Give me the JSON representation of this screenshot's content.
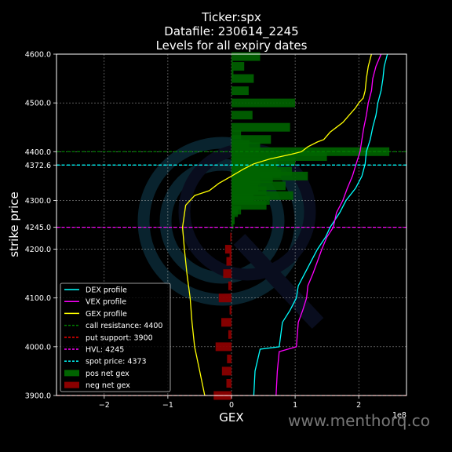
{
  "chart_data": {
    "type": "bar",
    "orientation": "horizontal",
    "title": [
      "Ticker:spx",
      "Datafile: 230614_2245",
      "Levels for all expiry dates"
    ],
    "xlabel": "GEX",
    "ylabel": "strike price",
    "x_scale_note": "1e8",
    "xlim": [
      -2.75,
      2.75
    ],
    "ylim": [
      3900,
      4600
    ],
    "xticks": [
      -2,
      -1,
      0,
      1,
      2
    ],
    "xtick_labels": [
      "−2",
      "−1",
      "0",
      "1",
      "2"
    ],
    "yticks": [
      3900,
      4000,
      4100,
      4200,
      4245,
      4300,
      4372.6,
      4400,
      4500,
      4600
    ],
    "ytick_labels": [
      "3900.0",
      "4000.0",
      "4100.0",
      "4200.0",
      "4245.0",
      "4300.0",
      "4372.6",
      "4400.0",
      "4500.0",
      "4600.0"
    ],
    "grid": true,
    "legend_position": "lower-left",
    "legend": [
      {
        "label": "DEX profile",
        "style": "line",
        "color": "#00ffff"
      },
      {
        "label": "VEX profile",
        "style": "line",
        "color": "#ff00ff"
      },
      {
        "label": "GEX profile",
        "style": "line",
        "color": "#ffff00"
      },
      {
        "label": "call resistance: 4400",
        "style": "dashed",
        "color": "#008000"
      },
      {
        "label": "put support: 3900",
        "style": "dashed",
        "color": "#ff0000"
      },
      {
        "label": "HVL: 4245",
        "style": "dashed",
        "color": "#ff00ff"
      },
      {
        "label": "spot price: 4373",
        "style": "dashed",
        "color": "#00ffff"
      },
      {
        "label": "pos net gex",
        "style": "patch",
        "color": "#006400"
      },
      {
        "label": "neg net gex",
        "style": "patch",
        "color": "#8b0000"
      }
    ],
    "levels": [
      {
        "value": 4400,
        "color": "#008000"
      },
      {
        "value": 3900,
        "color": "#ff0000"
      },
      {
        "value": 4245,
        "color": "#ff00ff"
      },
      {
        "value": 4372.6,
        "color": "#00ffff"
      }
    ],
    "pos_bars": [
      [
        4595,
        0.45
      ],
      [
        4580,
        0.02
      ],
      [
        4575,
        0.2
      ],
      [
        4560,
        0.03
      ],
      [
        4550,
        0.35
      ],
      [
        4525,
        0.27
      ],
      [
        4500,
        1.0
      ],
      [
        4475,
        0.33
      ],
      [
        4450,
        0.92
      ],
      [
        4435,
        0.15
      ],
      [
        4425,
        0.62
      ],
      [
        4415,
        0.28
      ],
      [
        4410,
        0.45
      ],
      [
        4400,
        2.48
      ],
      [
        4390,
        1.5
      ],
      [
        4385,
        0.72
      ],
      [
        4380,
        1.0
      ],
      [
        4375,
        0.55
      ],
      [
        4370,
        0.72
      ],
      [
        4365,
        0.45
      ],
      [
        4360,
        0.95
      ],
      [
        4355,
        0.78
      ],
      [
        4350,
        1.2
      ],
      [
        4345,
        0.65
      ],
      [
        4340,
        0.45
      ],
      [
        4335,
        0.3
      ],
      [
        4330,
        0.85
      ],
      [
        4325,
        0.42
      ],
      [
        4320,
        0.55
      ],
      [
        4310,
        0.97
      ],
      [
        4305,
        0.35
      ],
      [
        4300,
        0.6
      ],
      [
        4290,
        0.55
      ],
      [
        4280,
        0.15
      ],
      [
        4275,
        0.1
      ],
      [
        4260,
        0.05
      ],
      [
        4250,
        0.03
      ]
    ],
    "neg_bars": [
      [
        4225,
        -0.02
      ],
      [
        4200,
        -0.1
      ],
      [
        4190,
        -0.03
      ],
      [
        4175,
        -0.08
      ],
      [
        4150,
        -0.13
      ],
      [
        4125,
        -0.05
      ],
      [
        4100,
        -0.2
      ],
      [
        4075,
        -0.03
      ],
      [
        4050,
        -0.16
      ],
      [
        4025,
        -0.05
      ],
      [
        4000,
        -0.25
      ],
      [
        3975,
        -0.07
      ],
      [
        3950,
        -0.15
      ],
      [
        3925,
        -0.08
      ],
      [
        3900,
        -0.28
      ]
    ],
    "series": [
      {
        "name": "DEX profile",
        "color": "#00ffff",
        "points": [
          [
            0.35,
            3900
          ],
          [
            0.37,
            3950
          ],
          [
            0.45,
            3995
          ],
          [
            0.75,
            4000
          ],
          [
            0.8,
            4050
          ],
          [
            0.92,
            4075
          ],
          [
            1.02,
            4100
          ],
          [
            1.05,
            4125
          ],
          [
            1.15,
            4150
          ],
          [
            1.25,
            4175
          ],
          [
            1.35,
            4200
          ],
          [
            1.48,
            4225
          ],
          [
            1.55,
            4245
          ],
          [
            1.7,
            4275
          ],
          [
            1.8,
            4300
          ],
          [
            1.95,
            4325
          ],
          [
            2.05,
            4350
          ],
          [
            2.1,
            4375
          ],
          [
            2.12,
            4400
          ],
          [
            2.18,
            4425
          ],
          [
            2.22,
            4450
          ],
          [
            2.27,
            4475
          ],
          [
            2.3,
            4500
          ],
          [
            2.35,
            4525
          ],
          [
            2.38,
            4550
          ],
          [
            2.4,
            4575
          ],
          [
            2.45,
            4600
          ]
        ]
      },
      {
        "name": "VEX profile",
        "color": "#ff00ff",
        "points": [
          [
            0.7,
            3900
          ],
          [
            0.72,
            3950
          ],
          [
            0.75,
            3990
          ],
          [
            1.02,
            4000
          ],
          [
            1.05,
            4050
          ],
          [
            1.12,
            4075
          ],
          [
            1.18,
            4100
          ],
          [
            1.2,
            4125
          ],
          [
            1.28,
            4150
          ],
          [
            1.35,
            4175
          ],
          [
            1.42,
            4200
          ],
          [
            1.5,
            4225
          ],
          [
            1.6,
            4245
          ],
          [
            1.65,
            4275
          ],
          [
            1.75,
            4300
          ],
          [
            1.82,
            4325
          ],
          [
            1.9,
            4350
          ],
          [
            1.96,
            4375
          ],
          [
            2.02,
            4400
          ],
          [
            2.05,
            4425
          ],
          [
            2.08,
            4450
          ],
          [
            2.12,
            4475
          ],
          [
            2.15,
            4500
          ],
          [
            2.2,
            4525
          ],
          [
            2.22,
            4550
          ],
          [
            2.27,
            4575
          ],
          [
            2.35,
            4600
          ]
        ]
      },
      {
        "name": "GEX profile",
        "color": "#ffff00",
        "points": [
          [
            -0.42,
            3900
          ],
          [
            -0.5,
            3950
          ],
          [
            -0.58,
            4000
          ],
          [
            -0.62,
            4050
          ],
          [
            -0.65,
            4100
          ],
          [
            -0.7,
            4150
          ],
          [
            -0.74,
            4200
          ],
          [
            -0.77,
            4245
          ],
          [
            -0.72,
            4290
          ],
          [
            -0.58,
            4310
          ],
          [
            -0.35,
            4320
          ],
          [
            -0.2,
            4335
          ],
          [
            0,
            4350
          ],
          [
            0.2,
            4365
          ],
          [
            0.35,
            4375
          ],
          [
            0.6,
            4385
          ],
          [
            0.95,
            4395
          ],
          [
            1.1,
            4400
          ],
          [
            1.2,
            4410
          ],
          [
            1.35,
            4420
          ],
          [
            1.45,
            4425
          ],
          [
            1.55,
            4440
          ],
          [
            1.65,
            4450
          ],
          [
            1.75,
            4460
          ],
          [
            1.85,
            4475
          ],
          [
            1.95,
            4490
          ],
          [
            2.0,
            4500
          ],
          [
            2.07,
            4510
          ],
          [
            2.1,
            4525
          ],
          [
            2.12,
            4550
          ],
          [
            2.15,
            4575
          ],
          [
            2.2,
            4600
          ]
        ]
      }
    ]
  },
  "watermark": "www.menthorq.co"
}
